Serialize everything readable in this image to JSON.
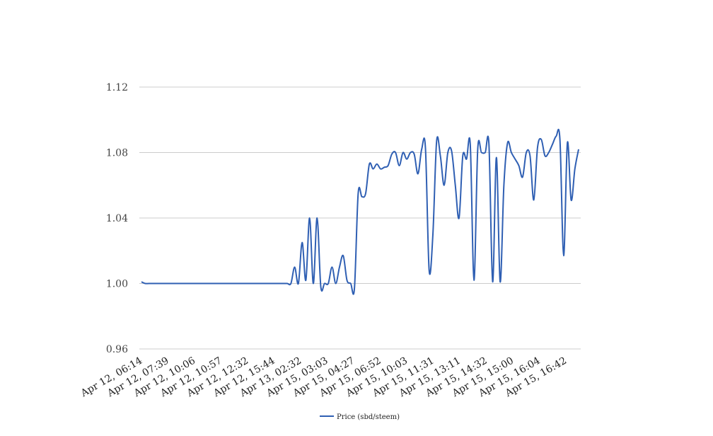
{
  "chart_data": {
    "type": "line",
    "ylim": [
      0.96,
      1.12
    ],
    "y_ticks": [
      "0.96",
      "1.00",
      "1.04",
      "1.08",
      "1.12"
    ],
    "grid": "horizontal",
    "legend_position": "bottom",
    "x_tick_labels": [
      "Apr 12, 06:14",
      "Apr 12, 07:39",
      "Apr 12, 10:06",
      "Apr 12, 10:57",
      "Apr 12, 12:32",
      "Apr 12, 15:44",
      "Apr 13, 02:32",
      "Apr 15, 03:03",
      "Apr 15, 04:27",
      "Apr 15, 06:52",
      "Apr 15, 10:03",
      "Apr 15, 11:31",
      "Apr 15, 13:11",
      "Apr 15, 14:32",
      "Apr 15, 15:00",
      "Apr 15, 16:04",
      "Apr 15, 16:42"
    ],
    "series": [
      {
        "name": "Price (sbd/steem)",
        "color": "#2f5fb3",
        "values": [
          1.001,
          1.0,
          1.0,
          1.0,
          1.0,
          1.0,
          1.0,
          1.0,
          1.0,
          1.0,
          1.0,
          1.0,
          1.0,
          1.0,
          1.0,
          1.0,
          1.0,
          1.0,
          1.0,
          1.0,
          1.0,
          1.0,
          1.0,
          1.0,
          1.0,
          1.0,
          1.0,
          1.0,
          1.0,
          1.0,
          1.0,
          1.0,
          1.0,
          1.0,
          1.0,
          1.0,
          1.0,
          1.0,
          1.0,
          1.0,
          1.0,
          1.01,
          1.0,
          1.025,
          1.002,
          1.04,
          1.0,
          1.04,
          0.998,
          1.0,
          1.0,
          1.01,
          1.0,
          1.01,
          1.017,
          1.002,
          1.0,
          0.997,
          1.055,
          1.053,
          1.055,
          1.073,
          1.07,
          1.073,
          1.07,
          1.071,
          1.072,
          1.079,
          1.08,
          1.072,
          1.08,
          1.076,
          1.08,
          1.079,
          1.067,
          1.082,
          1.083,
          1.008,
          1.03,
          1.087,
          1.078,
          1.06,
          1.08,
          1.081,
          1.06,
          1.04,
          1.078,
          1.076,
          1.085,
          1.002,
          1.082,
          1.08,
          1.08,
          1.085,
          1.001,
          1.077,
          1.001,
          1.06,
          1.086,
          1.08,
          1.076,
          1.072,
          1.065,
          1.08,
          1.078,
          1.051,
          1.083,
          1.088,
          1.078,
          1.08,
          1.085,
          1.09,
          1.088,
          1.017,
          1.086,
          1.051,
          1.07,
          1.082
        ]
      }
    ]
  }
}
